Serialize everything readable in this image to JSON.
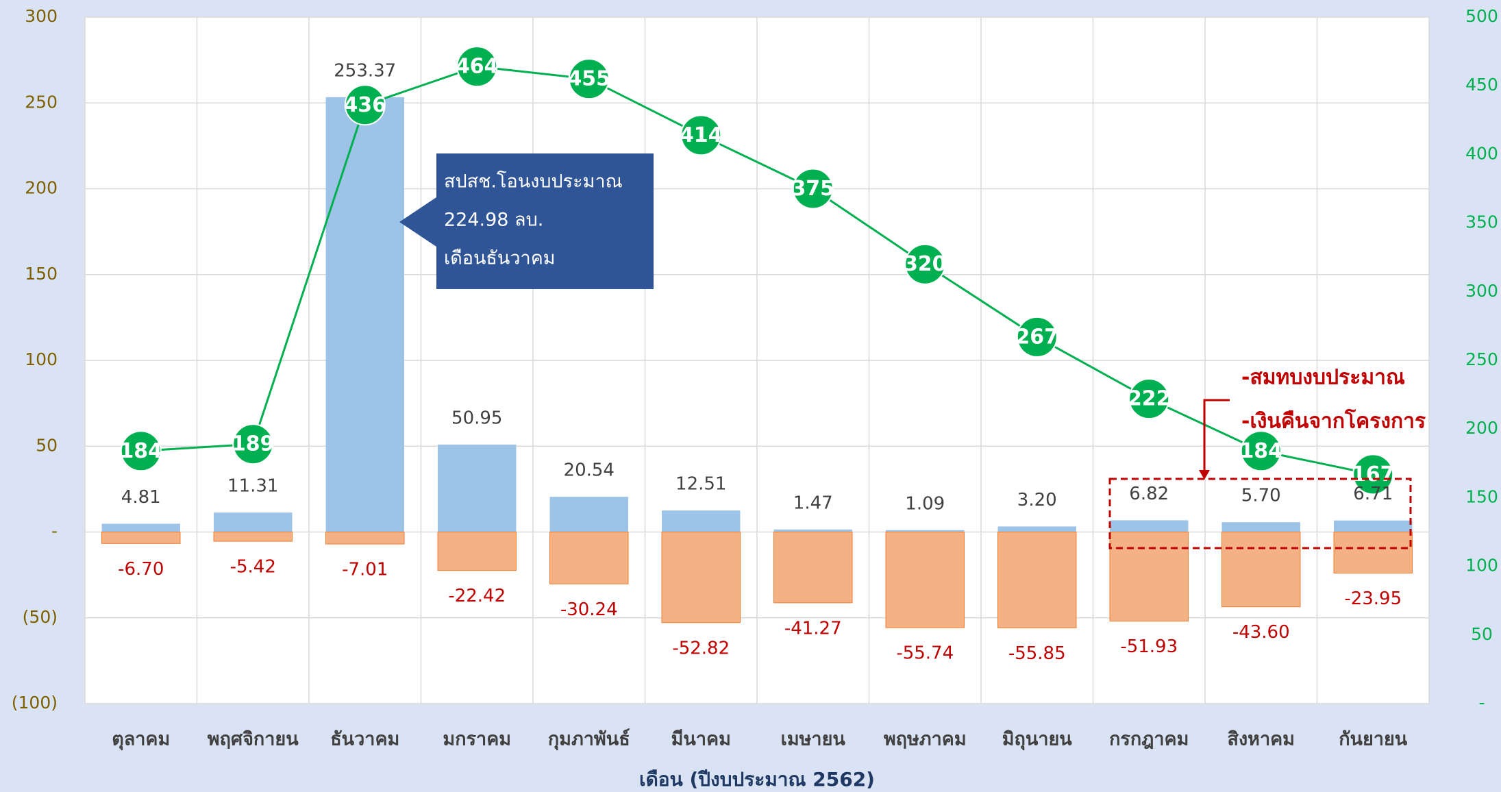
{
  "chart_data": {
    "type": "bar",
    "categories": [
      "ตุลาคม",
      "พฤศจิกายน",
      "ธันวาคม",
      "มกราคม",
      "กุมภาพันธ์",
      "มีนาคม",
      "เมษายน",
      "พฤษภาคม",
      "มิถุนายน",
      "กรกฎาคม",
      "สิงหาคม",
      "กันยายน"
    ],
    "series": [
      {
        "color": "#9dc3e6",
        "values": [
          4.81,
          11.31,
          253.37,
          50.95,
          20.54,
          12.51,
          1.47,
          1.09,
          3.2,
          6.82,
          5.7,
          6.71
        ],
        "value_labels": [
          "4.81",
          "11.31",
          "253.37",
          "50.95",
          "20.54",
          "12.51",
          "1.47",
          "1.09",
          "3.20",
          "6.82",
          "5.70",
          "6.71"
        ]
      },
      {
        "color": "#f4b183",
        "values": [
          -6.7,
          -5.42,
          -7.01,
          -22.42,
          -30.24,
          -52.82,
          -41.27,
          -55.74,
          -55.85,
          -51.93,
          -43.6,
          -23.95
        ],
        "value_labels": [
          "-6.70",
          "-5.42",
          "-7.01",
          "-22.42",
          "-30.24",
          "-52.82",
          "-41.27",
          "-55.74",
          "-55.85",
          "-51.93",
          "-43.60",
          "-23.95"
        ]
      },
      {
        "type": "line",
        "axis": "y2",
        "color": "#00b050",
        "values": [
          184,
          189,
          436,
          464,
          455,
          414,
          375,
          320,
          267,
          222,
          184,
          167
        ]
      }
    ],
    "x_label": "เดือน (ปีงบประมาณ 2562)",
    "ylim": [
      -100,
      300
    ],
    "yticks": [
      {
        "value": -100,
        "label": "(100)"
      },
      {
        "value": -50,
        "label": "(50)"
      },
      {
        "value": 0,
        "label": "-"
      },
      50,
      100,
      150,
      200,
      250,
      300
    ],
    "y2lim": [
      0,
      500
    ],
    "y2ticks": [
      {
        "value": 0,
        "label": "-"
      },
      50,
      100,
      150,
      200,
      250,
      300,
      350,
      400,
      450,
      500
    ],
    "grid": true,
    "annotations": {
      "callout": [
        "สปสช.โอนงบประมาณ",
        "224.98 ลบ.",
        "เดือนธันวาคม"
      ],
      "note": [
        "-สมทบงบประมาณ",
        "-เงินคืนจากโครงการ"
      ]
    }
  }
}
